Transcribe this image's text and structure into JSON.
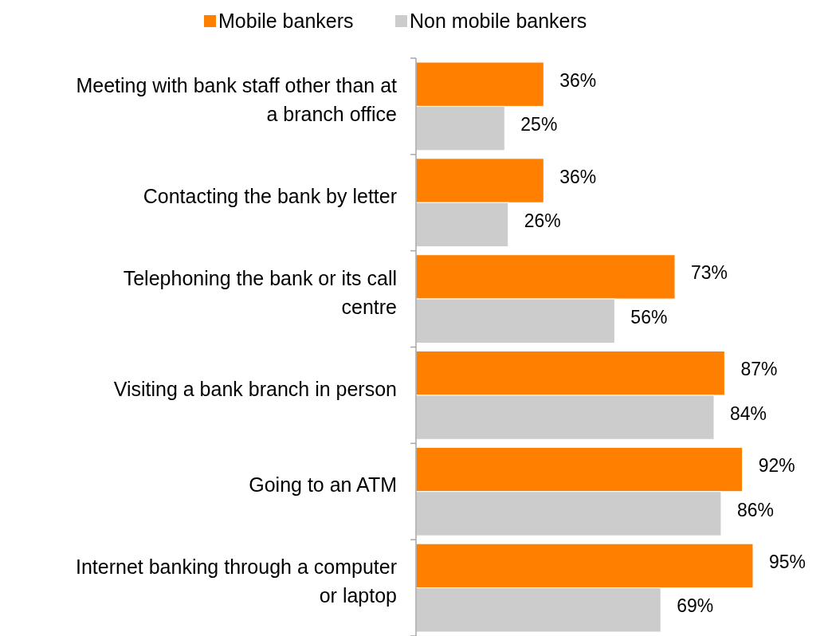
{
  "chart_data": {
    "type": "bar",
    "orientation": "horizontal",
    "categories": [
      "Meeting with bank staff other than at a branch office",
      "Contacting the bank by letter",
      "Telephoning the bank or its call centre",
      "Visiting a bank branch in person",
      "Going to an ATM",
      "Internet banking through a computer or laptop"
    ],
    "series": [
      {
        "name": "Mobile bankers",
        "color": "#ff7f00",
        "values": [
          36,
          36,
          73,
          87,
          92,
          95
        ],
        "value_labels": [
          "36%",
          "36%",
          "73%",
          "87%",
          "92%",
          "95%"
        ]
      },
      {
        "name": "Non mobile bankers",
        "color": "#cccccc",
        "values": [
          25,
          26,
          56,
          84,
          86,
          69
        ],
        "value_labels": [
          "25%",
          "26%",
          "56%",
          "84%",
          "86%",
          "69%"
        ]
      }
    ],
    "tick_labels": "y",
    "legend": "top"
  }
}
